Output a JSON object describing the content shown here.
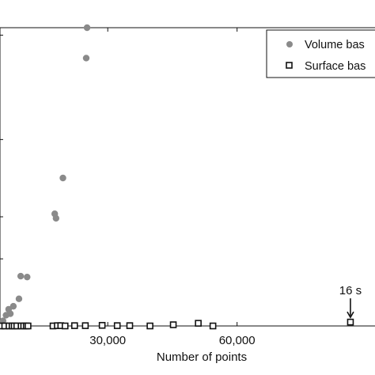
{
  "chart_data": {
    "type": "scatter",
    "title": "",
    "xlabel": "Number of points",
    "ylabel": "",
    "xlim": [
      5000,
      92000
    ],
    "ylim": [
      0,
      100
    ],
    "x_ticks": [
      30000,
      60000
    ],
    "x_tick_labels": [
      "30,000",
      "60,000"
    ],
    "y_tick_positions": [
      22.5,
      36.6,
      62.5,
      97.5
    ],
    "grid": false,
    "legend": {
      "position": "top-right",
      "entries": [
        "Volume bas",
        "Surface bas"
      ]
    },
    "series": [
      {
        "name": "Volume bas",
        "marker": "filled-circle",
        "color": "#8a8a8a",
        "points": [
          [
            5300,
            0.2
          ],
          [
            5700,
            1.7
          ],
          [
            6400,
            3.6
          ],
          [
            7000,
            5.6
          ],
          [
            7400,
            4.1
          ],
          [
            8100,
            6.6
          ],
          [
            9400,
            9.1
          ],
          [
            9800,
            16.7
          ],
          [
            11300,
            16.4
          ],
          [
            17700,
            37.6
          ],
          [
            18000,
            36.1
          ],
          [
            19600,
            49.6
          ],
          [
            25000,
            89.8
          ],
          [
            25200,
            100.0
          ]
        ]
      },
      {
        "name": "Surface bas",
        "marker": "open-square",
        "color": "#111111",
        "points": [
          [
            5300,
            0.0
          ],
          [
            6100,
            0.0
          ],
          [
            7100,
            0.0
          ],
          [
            7800,
            0.0
          ],
          [
            8300,
            0.0
          ],
          [
            8900,
            0.0
          ],
          [
            9900,
            0.0
          ],
          [
            10500,
            0.0
          ],
          [
            11100,
            0.0
          ],
          [
            11500,
            0.0
          ],
          [
            17300,
            0.0
          ],
          [
            18300,
            0.1
          ],
          [
            19100,
            0.1
          ],
          [
            20100,
            0.0
          ],
          [
            22300,
            0.1
          ],
          [
            24800,
            0.1
          ],
          [
            28700,
            0.2
          ],
          [
            32200,
            0.1
          ],
          [
            35100,
            0.1
          ],
          [
            39800,
            0.0
          ],
          [
            45200,
            0.4
          ],
          [
            51000,
            0.9
          ],
          [
            54400,
            0.0
          ],
          [
            86300,
            1.3
          ]
        ]
      }
    ],
    "annotations": [
      {
        "text": "16 s",
        "x": 86300,
        "y": 1.3,
        "arrow": true
      }
    ]
  }
}
